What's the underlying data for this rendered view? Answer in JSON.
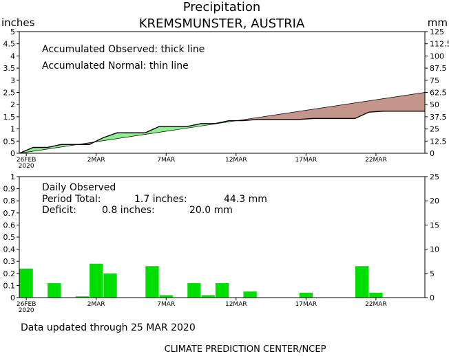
{
  "header": {
    "title": "Precipitation",
    "location": "KREMSMUNSTER, AUSTRIA",
    "left_unit": "inches",
    "right_unit": "mm"
  },
  "footer": {
    "updated": "Data updated through 25 MAR 2020",
    "credit": "CLIMATE PREDICTION CENTER/NCEP"
  },
  "colors": {
    "surplus": "#90ee90",
    "deficit": "#c4958a",
    "bars": "#00dd00",
    "axis": "#000000"
  },
  "chart_data": [
    {
      "type": "area",
      "notes": [
        "Accumulated Observed: thick line",
        "Accumulated Normal: thin line"
      ],
      "x_ticks": [
        {
          "day": 0,
          "label": "26FEB",
          "sub": "2020"
        },
        {
          "day": 5,
          "label": "2MAR"
        },
        {
          "day": 10,
          "label": "7MAR"
        },
        {
          "day": 15,
          "label": "12MAR"
        },
        {
          "day": 20,
          "label": "17MAR"
        },
        {
          "day": 25,
          "label": "22MAR"
        }
      ],
      "xlim": [
        -0.5,
        28.5
      ],
      "ylim_left": [
        0,
        5
      ],
      "left_ticks": [
        "0",
        "0.5",
        "1",
        "1.5",
        "2",
        "2.5",
        "3",
        "3.5",
        "4",
        "4.5",
        "5"
      ],
      "ylim_right": [
        0,
        125
      ],
      "right_ticks": [
        "0",
        "12.5",
        "25",
        "37.5",
        "50",
        "62.5",
        "75",
        "87.5",
        "100",
        "112.5",
        "125"
      ],
      "series": [
        {
          "name": "Accumulated Observed",
          "x": [
            -0.5,
            0.5,
            1.5,
            2.5,
            3.5,
            4.5,
            5.5,
            6.5,
            7.5,
            8.5,
            9.5,
            10.5,
            11.5,
            12.5,
            13.5,
            14.5,
            15.5,
            16.5,
            17.5,
            18.5,
            19.5,
            20.5,
            21.5,
            22.5,
            23.5,
            24.5,
            25.5,
            26.5,
            27.5,
            28.5
          ],
          "values": [
            0,
            0.24,
            0.24,
            0.36,
            0.36,
            0.36,
            0.64,
            0.84,
            0.84,
            0.84,
            1.1,
            1.1,
            1.1,
            1.22,
            1.22,
            1.34,
            1.34,
            1.39,
            1.39,
            1.39,
            1.39,
            1.43,
            1.43,
            1.43,
            1.43,
            1.69,
            1.73,
            1.73,
            1.73,
            1.73
          ]
        },
        {
          "name": "Accumulated Normal",
          "x": [
            -0.5,
            28.5
          ],
          "values": [
            0,
            2.5
          ]
        }
      ]
    },
    {
      "type": "bar",
      "notes": {
        "label": "Daily Observed",
        "total_label": "Period Total:",
        "total_in": "1.7 inches:",
        "total_mm": "44.3 mm",
        "deficit_label": "Deficit:",
        "deficit_in": "0.8 inches:",
        "deficit_mm": "20.0 mm"
      },
      "ylim_left": [
        0,
        1
      ],
      "left_ticks": [
        "0",
        "0.1",
        "0.2",
        "0.3",
        "0.4",
        "0.5",
        "0.6",
        "0.7",
        "0.8",
        "0.9",
        "1"
      ],
      "ylim_right": [
        0,
        25
      ],
      "right_ticks": [
        "0",
        "5",
        "10",
        "15",
        "20",
        "25"
      ],
      "days": [
        0,
        2,
        4,
        5,
        6,
        9,
        10,
        12,
        13,
        14,
        16,
        20,
        24,
        25
      ],
      "values": [
        0.24,
        0.12,
        0.01,
        0.28,
        0.2,
        0.26,
        0.02,
        0.12,
        0.02,
        0.12,
        0.05,
        0.04,
        0.26,
        0.04
      ]
    }
  ]
}
